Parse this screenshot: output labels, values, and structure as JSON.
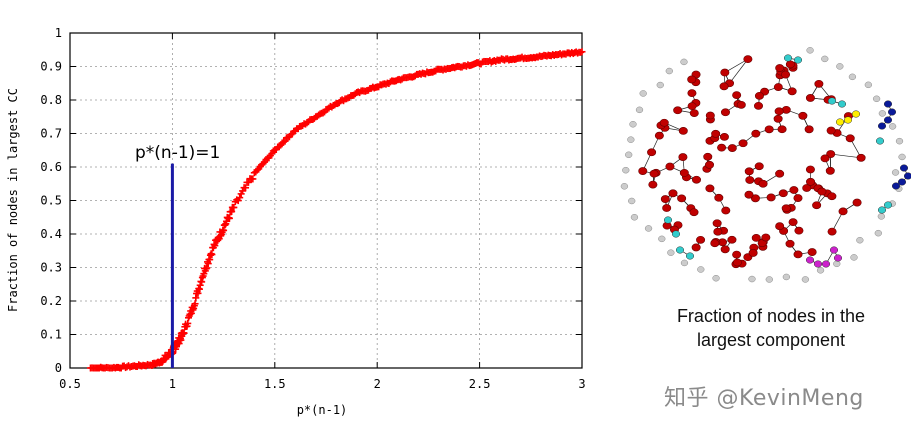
{
  "chart_data": {
    "type": "scatter",
    "title": "",
    "xlabel": "p*(n-1)",
    "ylabel": "Fraction of nodes in largest CC",
    "xlim": [
      0.5,
      3
    ],
    "ylim": [
      0,
      1
    ],
    "x_ticks": [
      "0.5",
      "1",
      "1.5",
      "2",
      "2.5",
      "3"
    ],
    "y_ticks": [
      "0",
      "0.1",
      "0.2",
      "0.3",
      "0.4",
      "0.5",
      "0.6",
      "0.7",
      "0.8",
      "0.9",
      "1"
    ],
    "grid": true,
    "series": [
      {
        "color": "#ff0000",
        "marker": "+",
        "x": [
          0.6,
          0.7,
          0.8,
          0.9,
          0.95,
          1.0,
          1.02,
          1.05,
          1.1,
          1.15,
          1.2,
          1.25,
          1.3,
          1.4,
          1.5,
          1.6,
          1.7,
          1.8,
          1.9,
          2.0,
          2.1,
          2.2,
          2.3,
          2.4,
          2.5,
          2.6,
          2.7,
          2.8,
          2.9,
          3.0
        ],
        "y": [
          0.0,
          0.0,
          0.005,
          0.01,
          0.02,
          0.05,
          0.07,
          0.1,
          0.18,
          0.28,
          0.36,
          0.42,
          0.48,
          0.58,
          0.65,
          0.71,
          0.75,
          0.79,
          0.82,
          0.84,
          0.86,
          0.875,
          0.89,
          0.9,
          0.91,
          0.92,
          0.925,
          0.93,
          0.937,
          0.944
        ]
      }
    ],
    "vline": {
      "x": 1,
      "y_top": 0.61,
      "color": "#1a1aa6"
    },
    "annotation": "p*(n-1)=1"
  },
  "graph_caption": {
    "line1": "Fraction of nodes in the",
    "line2": "largest component"
  },
  "watermark": "知乎 @KevinMeng",
  "colors": {
    "giant_component": "#c00000",
    "isolated": "#cccccc",
    "small_cyan": "#33cccc",
    "small_blue": "#0a1a99",
    "small_yellow": "#ffee00",
    "small_magenta": "#cc22cc"
  }
}
